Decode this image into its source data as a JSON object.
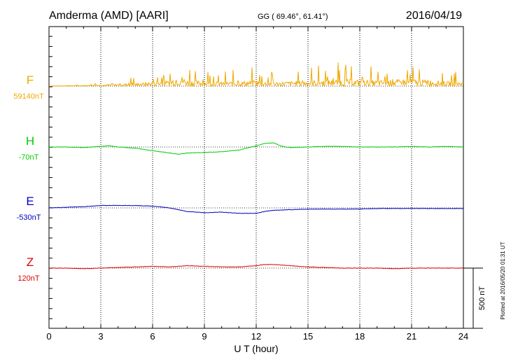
{
  "header": {
    "station": "Amderma (AMD)  [AARI]",
    "coords": "GG ( 69.46°,  61.41°)",
    "date": "2016/04/19"
  },
  "footer": {
    "plotted": "Plotted at 2016/05/20 01:31  UT"
  },
  "colors": {
    "F": "#f0a800",
    "H": "#00cc00",
    "E": "#0000c0",
    "Z": "#dd0000",
    "axis": "#000000"
  },
  "chart_data": {
    "type": "line",
    "xlabel": "U T (hour)",
    "xlim": [
      0,
      24
    ],
    "xticks": [
      "0",
      "3",
      "6",
      "9",
      "12",
      "15",
      "18",
      "21",
      "24"
    ],
    "scale_bar_label": "500 nT",
    "scale_bar_nT": 500,
    "series": [
      {
        "name": "F",
        "baseline_label": "59140nT",
        "color": "#f0a800",
        "x": [
          0,
          1,
          2,
          3,
          4,
          5,
          6,
          7,
          7.5,
          8,
          9,
          10,
          11,
          12,
          12.3,
          13,
          14,
          15,
          16,
          17,
          18,
          19,
          20,
          21,
          22,
          23,
          24
        ],
        "y": [
          0,
          5,
          10,
          20,
          30,
          40,
          60,
          80,
          180,
          90,
          70,
          60,
          70,
          80,
          60,
          60,
          70,
          80,
          90,
          100,
          90,
          80,
          90,
          100,
          90,
          70,
          60
        ]
      },
      {
        "name": "H",
        "baseline_label": "-70nT",
        "color": "#00cc00",
        "x": [
          0,
          1,
          2,
          3,
          3.5,
          4,
          5,
          6,
          7,
          7.5,
          8,
          9,
          10,
          11,
          12,
          12.5,
          13,
          13.5,
          14,
          15,
          16,
          17,
          18,
          19,
          20,
          21,
          22,
          23,
          24
        ],
        "y": [
          0,
          0,
          -5,
          5,
          10,
          0,
          -10,
          -30,
          -50,
          -60,
          -50,
          -45,
          -40,
          -25,
          10,
          30,
          35,
          5,
          -5,
          0,
          5,
          5,
          0,
          0,
          0,
          5,
          0,
          5,
          0
        ]
      },
      {
        "name": "E",
        "baseline_label": "-530nT",
        "color": "#0000c0",
        "x": [
          0,
          1,
          2,
          3,
          4,
          5,
          6,
          7,
          8,
          9,
          10,
          11,
          12,
          12.5,
          13,
          14,
          15,
          16,
          17,
          18,
          19,
          20,
          21,
          22,
          23,
          24
        ],
        "y": [
          0,
          5,
          10,
          20,
          20,
          20,
          15,
          0,
          -30,
          -40,
          -35,
          -45,
          -45,
          -30,
          -20,
          -15,
          -10,
          -10,
          -10,
          -10,
          -5,
          -5,
          -5,
          -5,
          -5,
          -5
        ]
      },
      {
        "name": "Z",
        "baseline_label": "120nT",
        "color": "#dd0000",
        "x": [
          0,
          1,
          2,
          3,
          4,
          5,
          6,
          7,
          8,
          9,
          10,
          11,
          12,
          12.5,
          13,
          14,
          15,
          16,
          17,
          18,
          19,
          20,
          21,
          22,
          23,
          24
        ],
        "y": [
          0,
          0,
          -5,
          0,
          5,
          10,
          15,
          10,
          20,
          15,
          10,
          10,
          20,
          30,
          30,
          20,
          10,
          5,
          0,
          0,
          0,
          -5,
          0,
          0,
          0,
          0
        ]
      }
    ]
  }
}
